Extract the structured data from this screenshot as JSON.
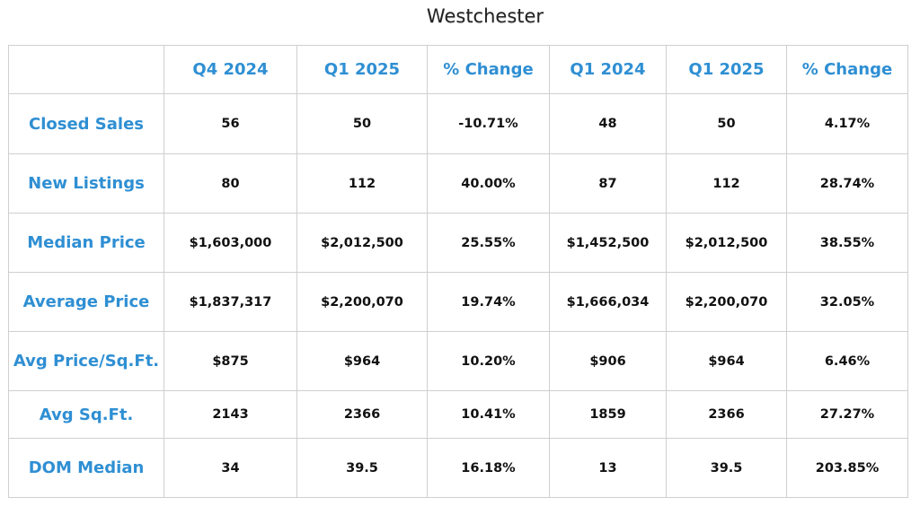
{
  "title": "Westchester",
  "columns": [
    "",
    "Q4 2024",
    "Q1 2025",
    "% Change",
    "Q1 2024",
    "Q1 2025",
    "% Change"
  ],
  "rows": [
    {
      "label": "Closed Sales",
      "values": [
        "56",
        "50",
        "-10.71%",
        "48",
        "50",
        "4.17%"
      ]
    },
    {
      "label": "New Listings",
      "values": [
        "80",
        "112",
        "40.00%",
        "87",
        "112",
        "28.74%"
      ]
    },
    {
      "label": "Median Price",
      "values": [
        "$1,603,000",
        "$2,012,500",
        "25.55%",
        "$1,452,500",
        "$2,012,500",
        "38.55%"
      ]
    },
    {
      "label": "Average Price",
      "values": [
        "$1,837,317",
        "$2,200,070",
        "19.74%",
        "$1,666,034",
        "$2,200,070",
        "32.05%"
      ]
    },
    {
      "label": "Avg Price/Sq.Ft.",
      "values": [
        "$875",
        "$964",
        "10.20%",
        "$906",
        "$964",
        "6.46%"
      ]
    },
    {
      "label": "Avg Sq.Ft.",
      "values": [
        "2143",
        "2366",
        "10.41%",
        "1859",
        "2366",
        "27.27%"
      ]
    },
    {
      "label": "DOM Median",
      "values": [
        "34",
        "39.5",
        "16.18%",
        "13",
        "39.5",
        "203.85%"
      ]
    }
  ],
  "colors": {
    "accent": "#2f8fd3",
    "text": "#111111",
    "border": "#cfcfcf"
  }
}
